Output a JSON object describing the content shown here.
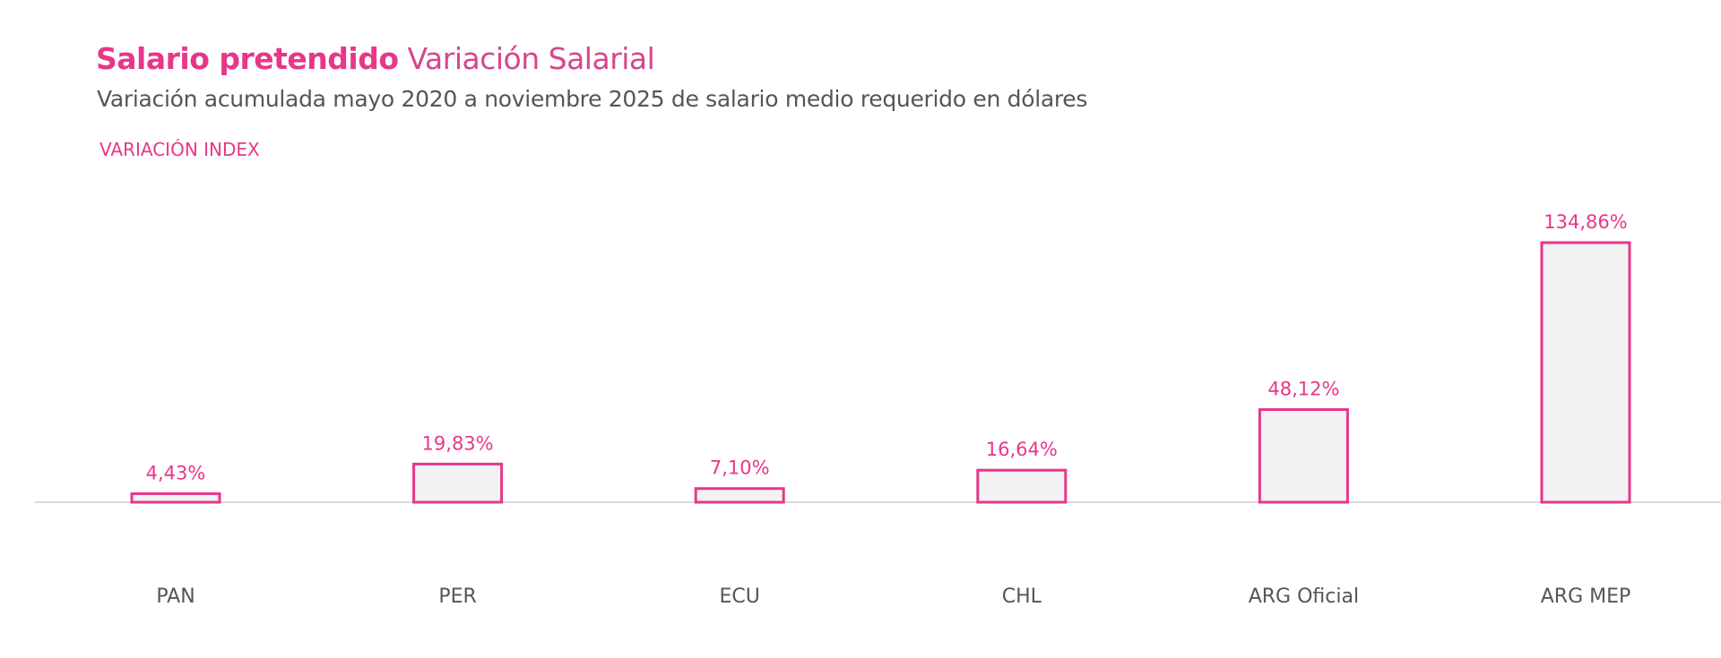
{
  "chart_data": {
    "type": "bar",
    "title_bold": "Salario pretendido",
    "title_light": "Variación Salarial",
    "subtitle": "Variación acumulada mayo 2020 a noviembre 2025 de salario medio requerido en dólares",
    "series_label": "VARIACIÓN INDEX",
    "categories": [
      "PAN",
      "PER",
      "ECU",
      "CHL",
      "ARG Oficial",
      "ARG MEP"
    ],
    "values": [
      4.43,
      19.83,
      7.1,
      16.64,
      48.12,
      134.86
    ],
    "data_labels": [
      "4,43%",
      "19,83%",
      "7,10%",
      "16,64%",
      "48,12%",
      "134,86%"
    ],
    "ylim": [
      0,
      140
    ],
    "grid": false,
    "colors": {
      "accent": "#e6378a",
      "bar_fill": "#f2f2f2",
      "bar_stroke": "#e6378a",
      "axis": "#d9d9d9",
      "category_text": "#555555"
    }
  }
}
